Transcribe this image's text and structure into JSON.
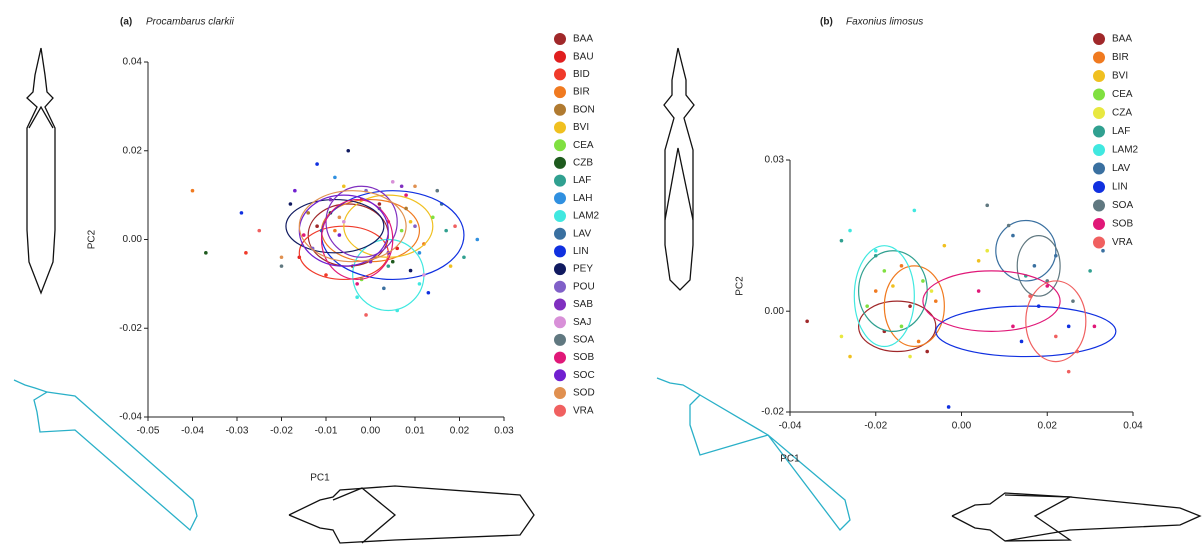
{
  "chart_data": [
    {
      "type": "scatter",
      "panel": "(a)",
      "title": "Procambarus clarkii",
      "x_label": "PC1",
      "y_label": "PC2",
      "xlim": [
        -0.05,
        0.03
      ],
      "ylim": [
        -0.04,
        0.04
      ],
      "xticks": [
        -0.05,
        -0.04,
        -0.03,
        -0.02,
        -0.01,
        {
          "value": 0,
          "label": "0.00"
        },
        0.01,
        0.02,
        0.03
      ],
      "yticks": [
        -0.04,
        -0.02,
        {
          "value": 0,
          "label": "0.00"
        },
        0.02,
        0.04
      ],
      "series": [
        {
          "name": "BAA",
          "color": "#a0282a",
          "x": [
            -0.012,
            -0.004,
            0.002
          ],
          "y": [
            0.003,
            -0.006,
            0.008
          ],
          "ellipse": {
            "cx": -0.005,
            "cy": 0.001,
            "rx": 0.009,
            "ry": 0.007
          }
        },
        {
          "name": "BAU",
          "color": "#e01f1f",
          "x": [
            -0.016,
            -0.002,
            0.006
          ],
          "y": [
            -0.004,
            0.009,
            -0.002
          ]
        },
        {
          "name": "BID",
          "color": "#f03a2a",
          "x": [
            -0.028,
            -0.01,
            0.004
          ],
          "y": [
            -0.003,
            -0.008,
            0.004
          ],
          "ellipse": {
            "cx": -0.006,
            "cy": -0.003,
            "rx": 0.01,
            "ry": 0.006
          }
        },
        {
          "name": "BIR",
          "color": "#f07a20",
          "x": [
            -0.04,
            -0.008,
            0.012
          ],
          "y": [
            0.011,
            0.002,
            -0.001
          ],
          "ellipse": {
            "cx": 0.0,
            "cy": 0.002,
            "rx": 0.011,
            "ry": 0.007
          }
        },
        {
          "name": "BON",
          "color": "#b07a30",
          "x": [
            -0.014,
            0.001,
            0.008
          ],
          "y": [
            0.006,
            -0.004,
            0.007
          ]
        },
        {
          "name": "BVI",
          "color": "#f0c020",
          "x": [
            -0.006,
            0.009,
            0.018
          ],
          "y": [
            0.012,
            0.004,
            -0.006
          ],
          "ellipse": {
            "cx": 0.004,
            "cy": 0.003,
            "rx": 0.01,
            "ry": 0.007
          }
        },
        {
          "name": "CEA",
          "color": "#80e040",
          "x": [
            -0.002,
            0.007,
            0.014
          ],
          "y": [
            -0.009,
            0.002,
            0.005
          ]
        },
        {
          "name": "CZB",
          "color": "#1e5a1e",
          "x": [
            -0.037,
            -0.009,
            0.005
          ],
          "y": [
            -0.003,
            0.006,
            -0.005
          ]
        },
        {
          "name": "LAF",
          "color": "#30a090",
          "x": [
            0.004,
            0.017,
            0.021
          ],
          "y": [
            -0.006,
            0.002,
            -0.004
          ]
        },
        {
          "name": "LAH",
          "color": "#3090e0",
          "x": [
            -0.008,
            0.011,
            0.024
          ],
          "y": [
            0.014,
            -0.003,
            0.0
          ]
        },
        {
          "name": "LAM2",
          "color": "#40e8e0",
          "x": [
            -0.003,
            0.006,
            0.011
          ],
          "y": [
            -0.013,
            -0.016,
            -0.01
          ],
          "ellipse": {
            "cx": 0.004,
            "cy": -0.008,
            "rx": 0.008,
            "ry": 0.008
          }
        },
        {
          "name": "LAV",
          "color": "#3a70a0",
          "x": [
            -0.011,
            0.003,
            0.016
          ],
          "y": [
            0.002,
            -0.011,
            0.008
          ]
        },
        {
          "name": "LIN",
          "color": "#1030e0",
          "x": [
            -0.029,
            -0.012,
            0.013
          ],
          "y": [
            0.006,
            0.017,
            -0.012
          ],
          "ellipse": {
            "cx": 0.005,
            "cy": 0.001,
            "rx": 0.016,
            "ry": 0.01
          }
        },
        {
          "name": "PEY",
          "color": "#101a60",
          "x": [
            -0.018,
            -0.005,
            0.009
          ],
          "y": [
            0.008,
            0.02,
            -0.007
          ],
          "ellipse": {
            "cx": -0.008,
            "cy": 0.003,
            "rx": 0.011,
            "ry": 0.006
          }
        },
        {
          "name": "POU",
          "color": "#8060c8",
          "x": [
            -0.013,
            -0.001,
            0.01
          ],
          "y": [
            -0.002,
            0.011,
            0.003
          ]
        },
        {
          "name": "SAB",
          "color": "#8030c0",
          "x": [
            -0.009,
            0.0,
            0.007
          ],
          "y": [
            0.009,
            -0.005,
            0.012
          ],
          "ellipse": {
            "cx": -0.002,
            "cy": 0.004,
            "rx": 0.008,
            "ry": 0.008
          }
        },
        {
          "name": "SAJ",
          "color": "#d890d8",
          "x": [
            -0.006,
            0.005,
            0.012
          ],
          "y": [
            0.004,
            0.013,
            -0.008
          ]
        },
        {
          "name": "SOA",
          "color": "#607880",
          "x": [
            -0.02,
            0.002,
            0.015
          ],
          "y": [
            -0.006,
            0.007,
            0.011
          ]
        },
        {
          "name": "SOB",
          "color": "#e01878",
          "x": [
            -0.015,
            -0.003,
            0.008
          ],
          "y": [
            0.001,
            -0.01,
            0.01
          ],
          "ellipse": {
            "cx": -0.003,
            "cy": 0.0,
            "rx": 0.008,
            "ry": 0.009
          }
        },
        {
          "name": "SOC",
          "color": "#7020d0",
          "x": [
            -0.017,
            -0.007,
            0.004
          ],
          "y": [
            0.011,
            0.001,
            -0.003
          ],
          "ellipse": {
            "cx": -0.006,
            "cy": 0.002,
            "rx": 0.01,
            "ry": 0.008
          }
        },
        {
          "name": "SOD",
          "color": "#e09050",
          "x": [
            -0.02,
            -0.007,
            0.01
          ],
          "y": [
            -0.004,
            0.005,
            0.012
          ],
          "ellipse": {
            "cx": -0.004,
            "cy": 0.003,
            "rx": 0.012,
            "ry": 0.008
          }
        },
        {
          "name": "VRA",
          "color": "#f06060",
          "x": [
            -0.025,
            -0.001,
            0.019
          ],
          "y": [
            0.002,
            -0.017,
            0.003
          ]
        }
      ],
      "legend": "right"
    },
    {
      "type": "scatter",
      "panel": "(b)",
      "title": "Faxonius limosus",
      "x_label": "PC1",
      "y_label": "PC2",
      "xlim": [
        -0.04,
        0.04
      ],
      "ylim": [
        -0.02,
        0.03
      ],
      "xticks": [
        -0.04,
        -0.02,
        {
          "value": 0,
          "label": "0.00"
        },
        0.02,
        0.04
      ],
      "yticks": [
        -0.02,
        {
          "value": 0,
          "label": "0.00"
        },
        0.03
      ],
      "series": [
        {
          "name": "BAA",
          "color": "#a0282a",
          "x": [
            -0.036,
            -0.018,
            -0.012,
            -0.008
          ],
          "y": [
            -0.002,
            -0.004,
            0.001,
            -0.008
          ],
          "ellipse": {
            "cx": -0.015,
            "cy": -0.003,
            "rx": 0.009,
            "ry": 0.005
          }
        },
        {
          "name": "BIR",
          "color": "#f07a20",
          "x": [
            -0.02,
            -0.01,
            -0.006,
            -0.014
          ],
          "y": [
            0.004,
            -0.006,
            0.002,
            0.009
          ],
          "ellipse": {
            "cx": -0.011,
            "cy": 0.001,
            "rx": 0.007,
            "ry": 0.008
          }
        },
        {
          "name": "BVI",
          "color": "#f0c020",
          "x": [
            -0.026,
            -0.016,
            -0.004,
            0.004
          ],
          "y": [
            -0.009,
            0.005,
            0.013,
            0.01
          ]
        },
        {
          "name": "CEA",
          "color": "#80e040",
          "x": [
            -0.022,
            -0.014,
            -0.009,
            -0.018
          ],
          "y": [
            0.001,
            -0.003,
            0.006,
            0.008
          ]
        },
        {
          "name": "CZA",
          "color": "#e8e840",
          "x": [
            -0.028,
            -0.012,
            -0.007,
            0.006
          ],
          "y": [
            -0.005,
            -0.009,
            0.004,
            0.012
          ]
        },
        {
          "name": "LAF",
          "color": "#30a090",
          "x": [
            -0.028,
            -0.02,
            0.015,
            0.03
          ],
          "y": [
            0.014,
            0.011,
            0.007,
            0.008
          ],
          "ellipse": {
            "cx": -0.016,
            "cy": 0.004,
            "rx": 0.008,
            "ry": 0.008
          }
        },
        {
          "name": "LAM2",
          "color": "#40e8e0",
          "x": [
            -0.026,
            -0.02,
            -0.011
          ],
          "y": [
            0.016,
            0.012,
            0.02
          ],
          "ellipse": {
            "cx": -0.018,
            "cy": 0.003,
            "rx": 0.007,
            "ry": 0.01
          }
        },
        {
          "name": "LAV",
          "color": "#3a70a0",
          "x": [
            0.012,
            0.017,
            0.022,
            0.033
          ],
          "y": [
            0.015,
            0.009,
            0.011,
            0.012
          ],
          "ellipse": {
            "cx": 0.015,
            "cy": 0.012,
            "rx": 0.007,
            "ry": 0.006
          }
        },
        {
          "name": "LIN",
          "color": "#1030e0",
          "x": [
            -0.003,
            0.014,
            0.025,
            0.018
          ],
          "y": [
            -0.019,
            -0.006,
            -0.003,
            0.001
          ],
          "ellipse": {
            "cx": 0.015,
            "cy": -0.004,
            "rx": 0.021,
            "ry": 0.005
          }
        },
        {
          "name": "SOA",
          "color": "#607880",
          "x": [
            0.006,
            0.011,
            0.02,
            0.026
          ],
          "y": [
            0.021,
            0.017,
            0.006,
            0.002
          ],
          "ellipse": {
            "cx": 0.018,
            "cy": 0.009,
            "rx": 0.005,
            "ry": 0.006
          }
        },
        {
          "name": "SOB",
          "color": "#e01878",
          "x": [
            0.004,
            0.012,
            0.02,
            0.031
          ],
          "y": [
            0.004,
            -0.003,
            0.005,
            -0.003
          ],
          "ellipse": {
            "cx": 0.007,
            "cy": 0.002,
            "rx": 0.016,
            "ry": 0.006
          }
        },
        {
          "name": "VRA",
          "color": "#f06060",
          "x": [
            0.016,
            0.022,
            0.027,
            0.025
          ],
          "y": [
            0.003,
            -0.005,
            -0.008,
            -0.012
          ],
          "ellipse": {
            "cx": 0.022,
            "cy": -0.002,
            "rx": 0.007,
            "ry": 0.008
          }
        }
      ],
      "legend": "right"
    }
  ]
}
